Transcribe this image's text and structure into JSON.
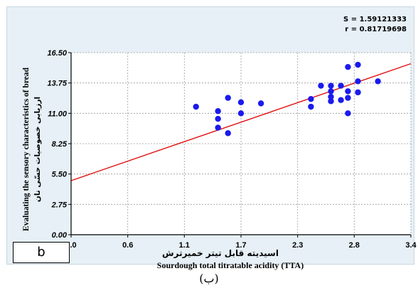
{
  "stats": {
    "s": "S = 1.59121333",
    "r": "r = 0.81719698"
  },
  "panel_label": "b",
  "caption": "(ب)",
  "colors": {
    "background": "#e6f0f6",
    "plot": "#ffffff",
    "points": "#1a1aee",
    "fit_line": "#e01010"
  },
  "chart_data": {
    "type": "scatter",
    "xlabel_fa": "اسیدیته قابل تیتر خمیرترش",
    "xlabel_en": "Sourdough total titratable acidity (TTA)",
    "ylabel_en": "Evaluating the sensory characteristics of bread",
    "ylabel_fa": "ارزیابی خصوصیات حسّی نان",
    "xlim": [
      0.0,
      3.4
    ],
    "ylim": [
      0.0,
      16.5
    ],
    "x_ticks": [
      "0.0",
      "0.6",
      "1.1",
      "1.7",
      "2.3",
      "2.8",
      "3.4"
    ],
    "x_tick_values": [
      0.0,
      0.567,
      1.133,
      1.7,
      2.267,
      2.833,
      3.4
    ],
    "y_ticks": [
      "0.00",
      "2.75",
      "5.50",
      "8.25",
      "11.00",
      "13.75",
      "16.50"
    ],
    "y_tick_values": [
      0.0,
      2.75,
      5.5,
      8.25,
      11.0,
      13.75,
      16.5
    ],
    "grid": true,
    "fit_line": {
      "x": [
        0.0,
        3.4
      ],
      "y": [
        4.9,
        15.5
      ]
    },
    "points": [
      {
        "x": 1.25,
        "y": 11.6
      },
      {
        "x": 1.47,
        "y": 11.2
      },
      {
        "x": 1.47,
        "y": 10.5
      },
      {
        "x": 1.47,
        "y": 9.7
      },
      {
        "x": 1.57,
        "y": 12.4
      },
      {
        "x": 1.57,
        "y": 9.2
      },
      {
        "x": 1.7,
        "y": 12.0
      },
      {
        "x": 1.7,
        "y": 11.0
      },
      {
        "x": 1.9,
        "y": 11.9
      },
      {
        "x": 2.4,
        "y": 12.3
      },
      {
        "x": 2.4,
        "y": 11.6
      },
      {
        "x": 2.5,
        "y": 13.5
      },
      {
        "x": 2.6,
        "y": 13.5
      },
      {
        "x": 2.6,
        "y": 13.0
      },
      {
        "x": 2.6,
        "y": 12.5
      },
      {
        "x": 2.6,
        "y": 12.1
      },
      {
        "x": 2.7,
        "y": 13.5
      },
      {
        "x": 2.7,
        "y": 12.2
      },
      {
        "x": 2.77,
        "y": 15.2
      },
      {
        "x": 2.77,
        "y": 13.0
      },
      {
        "x": 2.77,
        "y": 12.4
      },
      {
        "x": 2.77,
        "y": 11.0
      },
      {
        "x": 2.87,
        "y": 15.4
      },
      {
        "x": 2.87,
        "y": 13.9
      },
      {
        "x": 2.87,
        "y": 12.9
      },
      {
        "x": 3.07,
        "y": 13.9
      }
    ]
  }
}
